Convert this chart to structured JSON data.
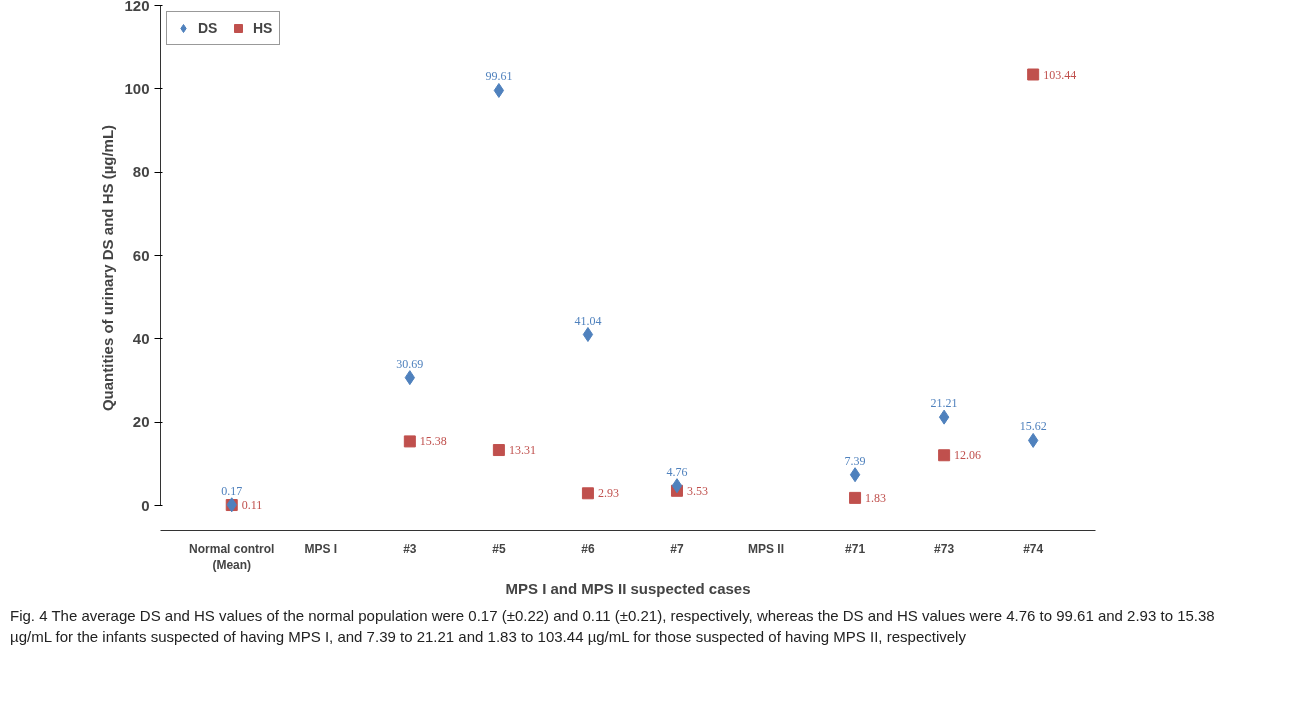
{
  "chart_data": {
    "type": "scatter",
    "xlabel": "MPS I and MPS II suspected cases",
    "ylabel": "Quantities of urinary DS and HS (µg/mL)",
    "categories": [
      "Normal control\n(Mean)",
      "MPS I",
      "#3",
      "#5",
      "#6",
      "#7",
      "MPS II",
      "#71",
      "#73",
      "#74"
    ],
    "series": [
      {
        "name": "DS",
        "color": "#4f81bd",
        "marker": "diamond",
        "values": [
          0.17,
          null,
          30.69,
          99.61,
          41.04,
          4.76,
          null,
          7.39,
          21.21,
          15.62
        ]
      },
      {
        "name": "HS",
        "color": "#c0504d",
        "marker": "square",
        "values": [
          0.11,
          null,
          15.38,
          13.31,
          2.93,
          3.53,
          null,
          1.83,
          12.06,
          103.44
        ]
      }
    ],
    "ylim": [
      0,
      120
    ],
    "yticks": [
      0,
      20,
      40,
      60,
      80,
      100,
      120
    ],
    "grid": false,
    "legend": "top left",
    "data_labels": true,
    "annotations": [
      "Fig. 4 The average DS and HS values of the normal population were 0.17 (±0.22) and 0.11 (±0.21), respectively, whereas the DS and HS values were 4.76 to 99.61 and 2.93 to 15.38 µg/mL for the infants suspected of having MPS I, and 7.39 to 21.21 and 1.83 to 103.44 µg/mL for those suspected of having MPS II, respectively"
    ]
  }
}
